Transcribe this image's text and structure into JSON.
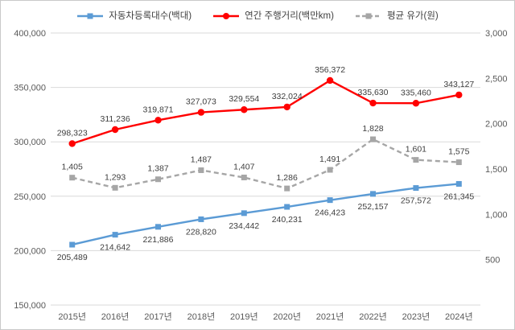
{
  "legend": [
    {
      "label": "자동차등록대수(백대)",
      "color": "#5B9BD5",
      "marker": "square",
      "dash": "solid"
    },
    {
      "label": "연간 주행거리(백만km)",
      "color": "#FF0000",
      "marker": "circle",
      "dash": "solid"
    },
    {
      "label": "평균 유가(원)",
      "color": "#A6A6A6",
      "marker": "square",
      "dash": "dashed"
    }
  ],
  "chart_data": {
    "type": "line",
    "categories": [
      "2015년",
      "2016년",
      "2017년",
      "2018년",
      "2019년",
      "2020년",
      "2021년",
      "2022년",
      "2023년",
      "2024년"
    ],
    "series": [
      {
        "name": "자동차등록대수(백대)",
        "axis": "left",
        "values": [
          205489,
          214642,
          221886,
          228820,
          234442,
          240231,
          246423,
          252157,
          257572,
          261345
        ],
        "color": "#5B9BD5",
        "marker": "square",
        "dash": "solid",
        "label_position": "below"
      },
      {
        "name": "연간 주행거리(백만km)",
        "axis": "left",
        "values": [
          298323,
          311236,
          319871,
          327073,
          329554,
          332024,
          356372,
          335630,
          335460,
          343127
        ],
        "color": "#FF0000",
        "marker": "circle",
        "dash": "solid",
        "label_position": "above"
      },
      {
        "name": "평균 유가(원)",
        "axis": "right",
        "values": [
          1405,
          1293,
          1387,
          1487,
          1407,
          1286,
          1491,
          1828,
          1601,
          1575
        ],
        "color": "#A6A6A6",
        "marker": "square",
        "dash": "dashed",
        "label_position": "above"
      }
    ],
    "left_axis": {
      "min": 150000,
      "max": 400000,
      "step": 50000,
      "ticks": [
        "400,000",
        "350,000",
        "300,000",
        "250,000",
        "200,000",
        "150,000"
      ]
    },
    "right_axis": {
      "min": 0,
      "max": 3000,
      "step": 500,
      "ticks": [
        "3,000",
        "2,500",
        "2,000",
        "1,500",
        "1,000",
        "500"
      ]
    },
    "grid": true,
    "legend_position": "top",
    "gridline_color": "#d9d9d9",
    "label_color": "#3d3d3d"
  }
}
